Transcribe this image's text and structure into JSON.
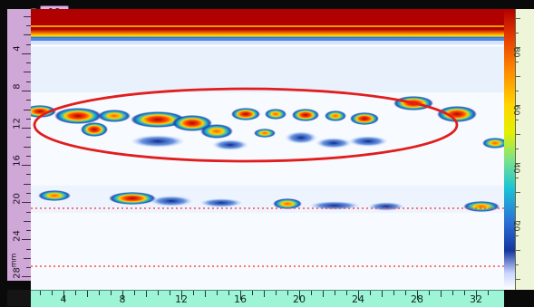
{
  "frame": {
    "number": "19"
  },
  "left_ruler": {
    "unit": "mm",
    "labels": [
      "4",
      "8",
      "12",
      "16",
      "20",
      "24",
      "28"
    ]
  },
  "bottom_ruler": {
    "labels": [
      "4",
      "8",
      "12",
      "16",
      "20",
      "24",
      "28",
      "32"
    ]
  },
  "color_scale": {
    "labels": [
      "80",
      "60",
      "40",
      "20"
    ],
    "colors": {
      "high": "#b30000",
      "mid": "#ffd400",
      "low": "#2b6fd8",
      "zero": "#ffffff"
    }
  },
  "annotation": {
    "ellipse_color": "#e11d1d",
    "guide_line_color": "#ff4a4a"
  }
}
